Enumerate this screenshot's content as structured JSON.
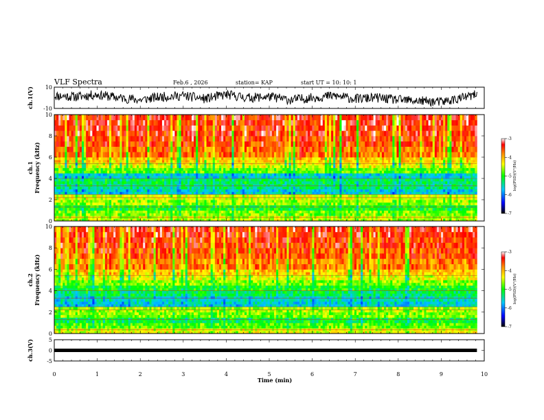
{
  "header": {
    "title": "VLF Spectra",
    "date": "Feb.6 , 2026",
    "station": "station= KAP",
    "start": "start  UT  =    10: 10: 1"
  },
  "colors": {
    "scale": [
      "#000000",
      "#0000ff",
      "#00c8ff",
      "#00ff00",
      "#ffff00",
      "#ff8c00",
      "#ff0000",
      "#ffffff"
    ],
    "line": "#000000"
  },
  "chart_data": [
    {
      "type": "line",
      "panel": "ch1-waveform",
      "ylabel": "ch.1(V)",
      "ylim": [
        -10,
        10
      ],
      "y_ticks": [
        "10",
        "-10"
      ],
      "xlim": [
        0,
        10
      ],
      "x": [
        0,
        0.5,
        1,
        1.5,
        2,
        2.5,
        3,
        3.5,
        4,
        4.5,
        5,
        5.5,
        6,
        6.5,
        7,
        7.5,
        8,
        8.5,
        9,
        9.5,
        9.83
      ],
      "values": [
        2,
        1,
        3,
        0,
        -2,
        1,
        2,
        -1,
        3,
        0,
        1,
        -2,
        0,
        2,
        -1,
        0,
        -2,
        -3,
        -4,
        0,
        3
      ]
    },
    {
      "type": "heatmap",
      "panel": "ch1-spectrogram",
      "ylabel": "ch.1\nFrequency (kHz)",
      "ylim": [
        0,
        10
      ],
      "y_ticks": [
        "0",
        "2",
        "4",
        "6",
        "8",
        "10"
      ],
      "xlim": [
        0,
        10
      ],
      "data_end_min": 9.83,
      "colorbar": {
        "label": "log(PSD)(V²/Hz)",
        "range": [
          -7,
          -3
        ],
        "ticks": [
          "-3",
          "-4",
          "-5",
          "-6",
          "-7"
        ]
      },
      "freq_bands_khz": [
        0.5,
        1,
        1.5,
        2,
        2.5,
        3,
        3.5,
        4,
        4.5,
        5,
        5.5,
        6,
        7,
        8,
        9,
        10
      ],
      "band_log_psd": [
        -4.5,
        -4.7,
        -5.0,
        -4.6,
        -4.4,
        -5.6,
        -5.3,
        -5.2,
        -5.6,
        -4.8,
        -4.4,
        -4.1,
        -3.7,
        -3.5,
        -3.4,
        -3.4
      ]
    },
    {
      "type": "heatmap",
      "panel": "ch2-spectrogram",
      "ylabel": "ch.2\nFrequency (kHz)",
      "ylim": [
        0,
        10
      ],
      "y_ticks": [
        "0",
        "2",
        "4",
        "6",
        "8",
        "10"
      ],
      "xlim": [
        0,
        10
      ],
      "data_end_min": 9.83,
      "colorbar": {
        "label": "log(PSD)(V²/Hz)",
        "range": [
          -7,
          -3
        ],
        "ticks": [
          "-3",
          "-4",
          "-5",
          "-6",
          "-7"
        ]
      },
      "freq_bands_khz": [
        0.5,
        1,
        1.5,
        2,
        2.5,
        3,
        3.5,
        4,
        4.5,
        5,
        5.5,
        6,
        7,
        8,
        9,
        10
      ],
      "band_log_psd": [
        -4.4,
        -4.8,
        -5.1,
        -4.7,
        -4.6,
        -5.6,
        -5.5,
        -5.2,
        -5.0,
        -4.7,
        -4.4,
        -4.1,
        -3.8,
        -3.6,
        -3.5,
        -3.4
      ]
    },
    {
      "type": "line",
      "panel": "ch3-waveform",
      "ylabel": "ch.3(V)",
      "ylim": [
        -5,
        5
      ],
      "y_ticks": [
        "5",
        "0",
        "-5"
      ],
      "xlim": [
        0,
        10
      ],
      "x": [
        0,
        9.83
      ],
      "values": [
        0,
        0
      ]
    }
  ],
  "x_axis": {
    "label": "Time  (min)",
    "ticks": [
      "0",
      "1",
      "2",
      "3",
      "4",
      "5",
      "6",
      "7",
      "8",
      "9",
      "10"
    ]
  }
}
